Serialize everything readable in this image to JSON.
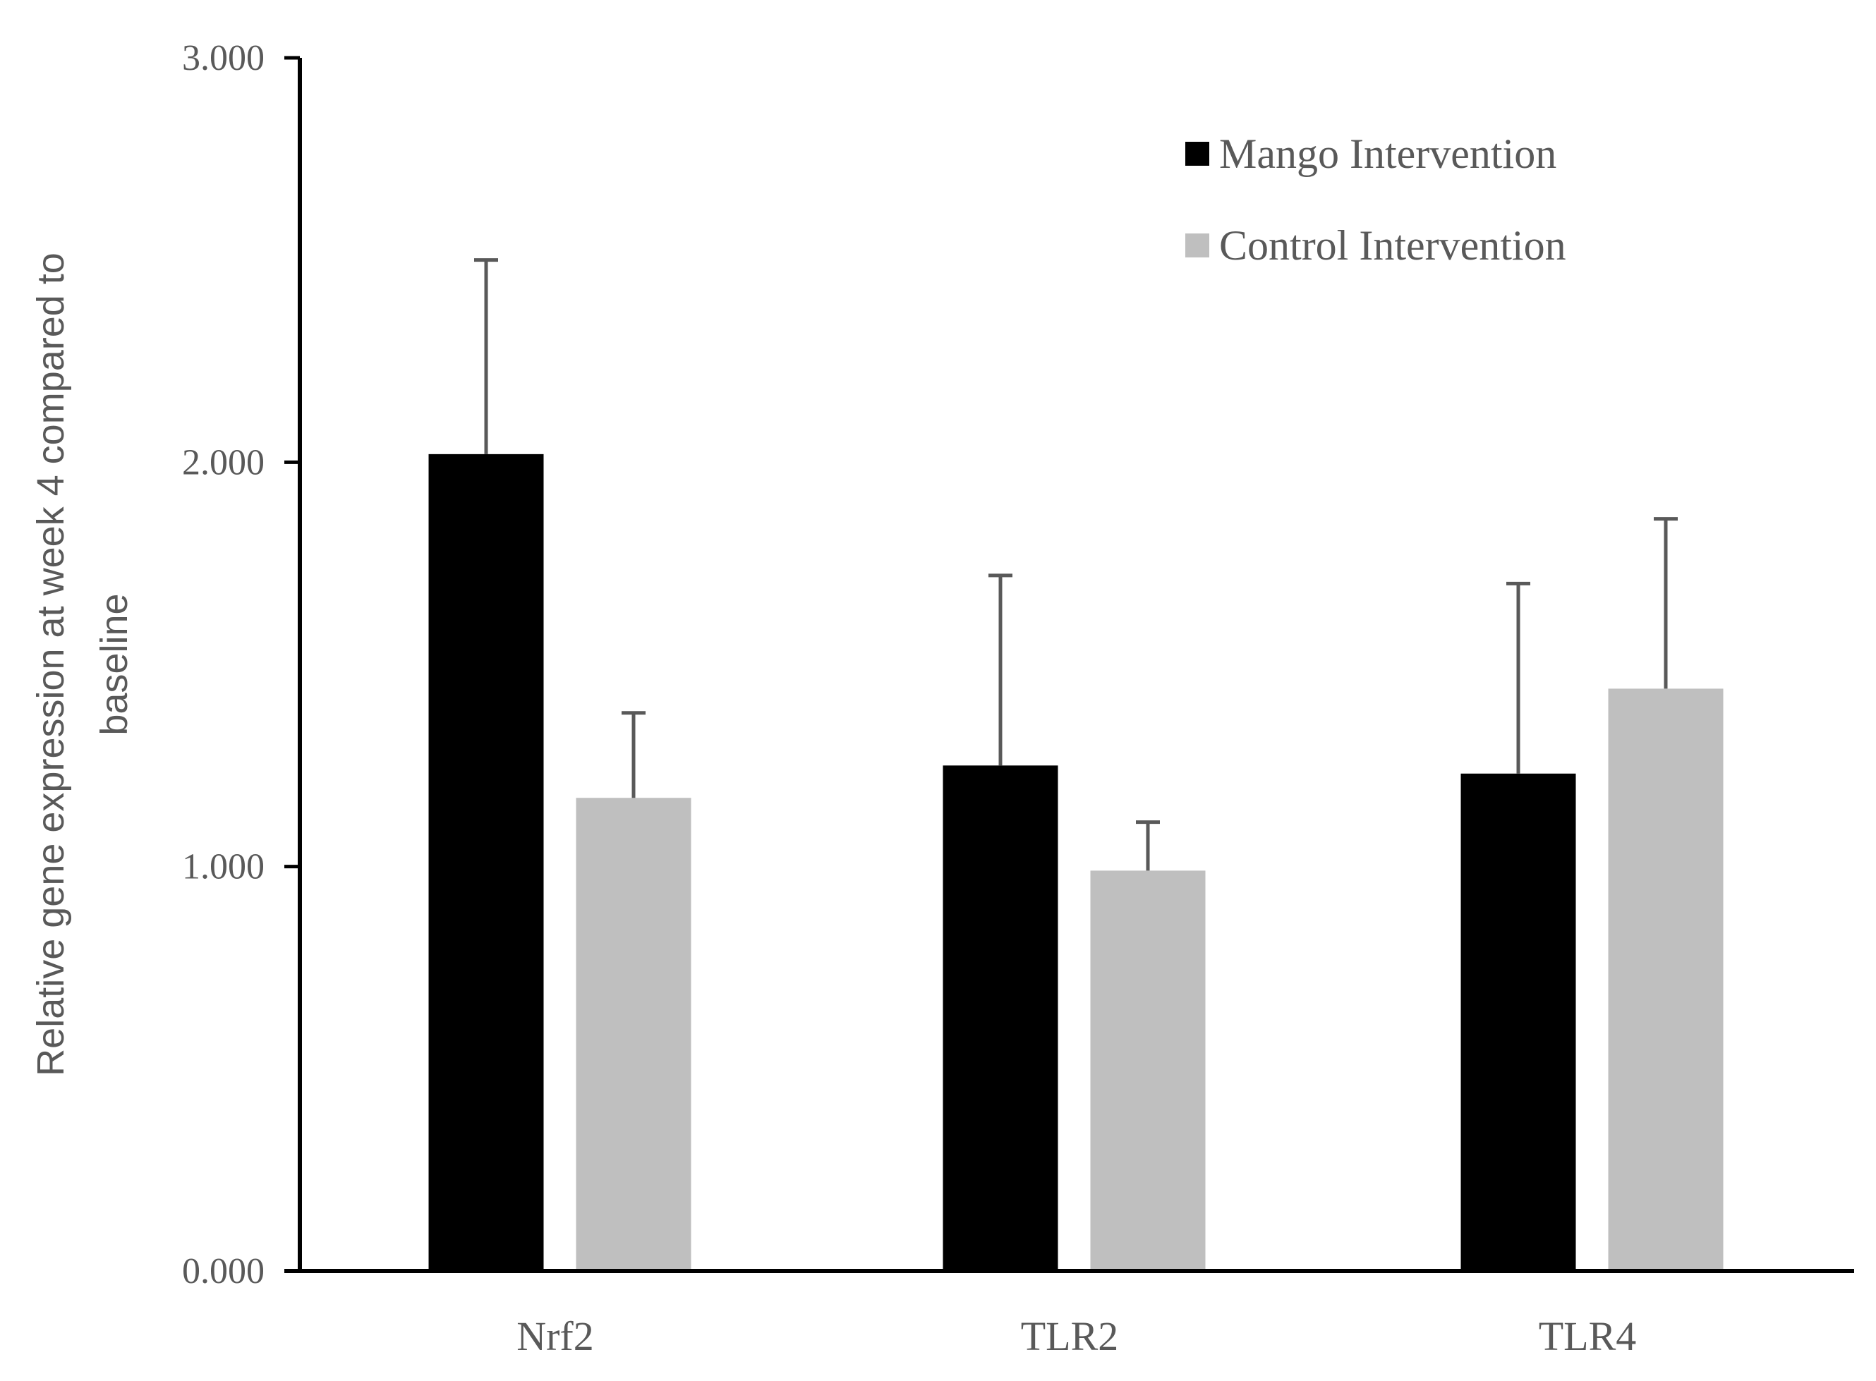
{
  "chart_data": {
    "type": "bar",
    "title": "",
    "xlabel": "",
    "ylabel_lines": [
      "Relative gene expression at week 4 compared to",
      "baseline"
    ],
    "categories": [
      "Nrf2",
      "TLR2",
      "TLR4"
    ],
    "series": [
      {
        "name": "Mango Intervention",
        "color": "#000000",
        "values": [
          2.02,
          1.25,
          1.23
        ],
        "errors": [
          0.48,
          0.47,
          0.47
        ]
      },
      {
        "name": "Control Intervention",
        "color": "#bfbfbf",
        "values": [
          1.17,
          0.99,
          1.44
        ],
        "errors": [
          0.21,
          0.12,
          0.42
        ]
      }
    ],
    "ylim": [
      0,
      3
    ],
    "yticks": [
      0,
      1,
      2,
      3
    ],
    "ytick_labels": [
      "0.000",
      "1.000",
      "2.000",
      "3.000"
    ],
    "legend_position": "top-right",
    "grid": false,
    "error_bar_color": "#595959",
    "axis_color": "#000000"
  }
}
